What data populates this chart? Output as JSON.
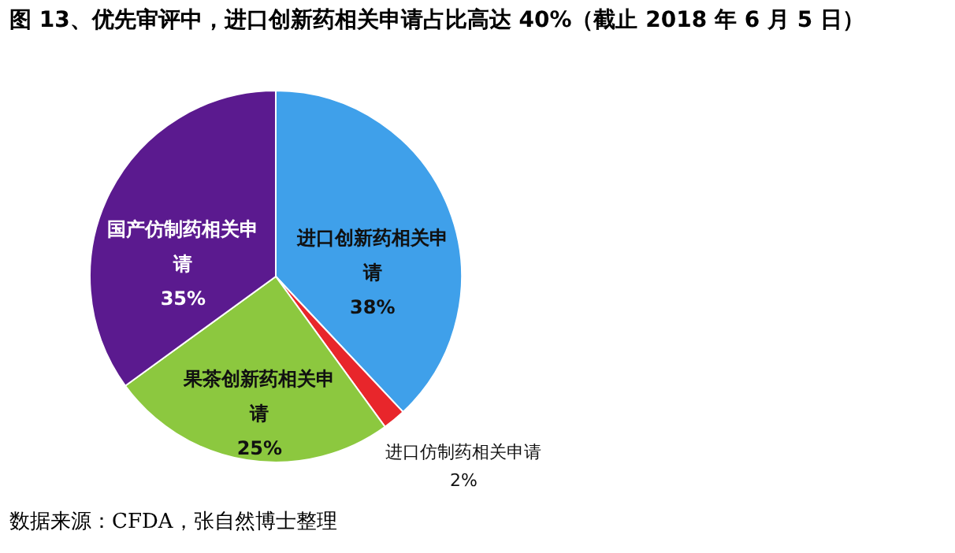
{
  "chart_data": {
    "type": "pie",
    "title": "图 13、优先审评中，进口创新药相关申请占比高达 40%（截止 2018 年 6 月 5 日）",
    "categories": [
      "进口创新药相关申请",
      "进口仿制药相关申请",
      "果茶创新药相关申请",
      "国产仿制药相关申请"
    ],
    "values": [
      38,
      2,
      25,
      35
    ],
    "colors": [
      "#3fa0ea",
      "#e8262b",
      "#8cc83f",
      "#5b1a8f"
    ],
    "value_labels": [
      "38%",
      "2%",
      "25%",
      "35%"
    ],
    "annotations": [
      "数据来源：CFDA，张自然博士整理"
    ]
  }
}
